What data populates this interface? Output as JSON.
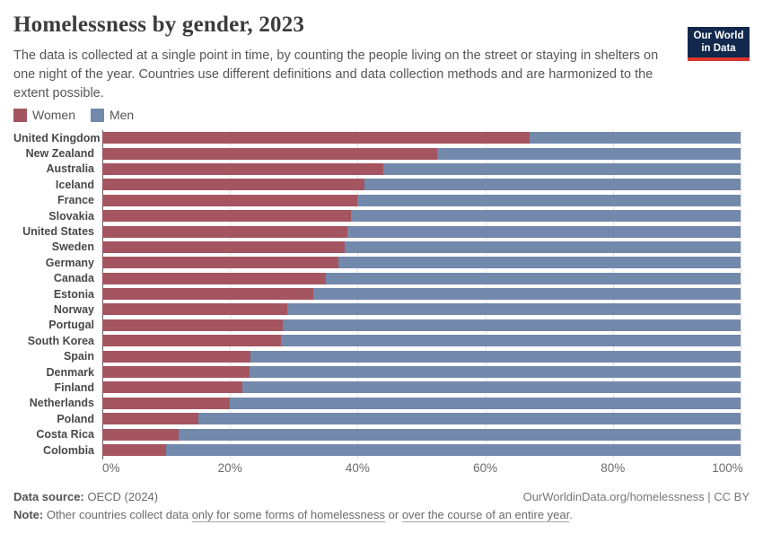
{
  "header": {
    "title": "Homelessness by gender, 2023",
    "subtitle": "The data is collected at a single point in time, by counting the people living on the street or staying in shelters on one night of the year. Countries use different definitions and data collection methods and are harmonized to the extent possible.",
    "logo_line1": "Our World",
    "logo_line2": "in Data"
  },
  "colors": {
    "women": "#a4555f",
    "men": "#7289ac",
    "logo_navy": "#12294d",
    "logo_red": "#dc352c",
    "gridline": "#e3e3e3"
  },
  "chart_data": {
    "type": "bar",
    "stacked": true,
    "orientation": "horizontal",
    "unit": "%",
    "xlim": [
      0,
      100
    ],
    "grid": true,
    "legend_position": "top-left",
    "x_ticks": [
      "0%",
      "20%",
      "40%",
      "60%",
      "80%",
      "100%"
    ],
    "x_tick_values": [
      0,
      20,
      40,
      60,
      80,
      100
    ],
    "categories": [
      "United Kingdom",
      "New Zealand",
      "Australia",
      "Iceland",
      "France",
      "Slovakia",
      "United States",
      "Sweden",
      "Germany",
      "Canada",
      "Estonia",
      "Norway",
      "Portugal",
      "South Korea",
      "Spain",
      "Denmark",
      "Finland",
      "Netherlands",
      "Poland",
      "Costa Rica",
      "Colombia"
    ],
    "series": [
      {
        "name": "Women",
        "color": "#a4555f",
        "values": [
          67,
          52.4,
          44,
          41,
          40,
          39,
          38.4,
          38,
          37,
          35,
          33,
          29,
          28.2,
          28,
          23.2,
          23,
          22,
          20,
          15,
          12,
          10
        ]
      },
      {
        "name": "Men",
        "color": "#7289ac",
        "values": [
          33,
          47.6,
          56,
          59,
          60,
          61,
          61.6,
          62,
          63,
          65,
          67,
          71,
          71.8,
          72,
          76.8,
          77,
          78,
          80,
          85,
          88,
          90
        ]
      }
    ]
  },
  "footer": {
    "source_label": "Data source:",
    "source_value": " OECD (2024)",
    "credit": "OurWorldinData.org/homelessness | CC BY",
    "note_label": "Note:",
    "note_pre": " Other countries collect data ",
    "note_link1": "only for some forms of homelessness",
    "note_mid": " or ",
    "note_link2": "over the course of an entire year",
    "note_post": "."
  }
}
